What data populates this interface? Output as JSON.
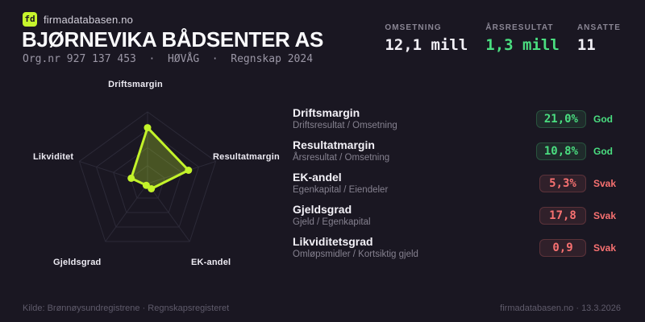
{
  "brand": {
    "logo_text": "fd",
    "site": "firmadatabasen.no"
  },
  "header": {
    "company": "BJØRNEVIKA BÅDSENTER AS",
    "meta": "Org.nr 927 137 453  ·  HØVÅG  ·  Regnskap 2024"
  },
  "stats": [
    {
      "label": "OMSETNING",
      "value": "12,1 mill",
      "tone": "white"
    },
    {
      "label": "ÅRSRESULTAT",
      "value": "1,3 mill",
      "tone": "green"
    },
    {
      "label": "ANSATTE",
      "value": "11",
      "tone": "white"
    }
  ],
  "chart_data": {
    "type": "radar",
    "axes": [
      "Driftsmargin",
      "Resultatmargin",
      "EK-andel",
      "Gjeldsgrad",
      "Likviditet"
    ],
    "values_normalized": [
      0.78,
      0.6,
      0.09,
      0.03,
      0.24
    ],
    "axis_metric_values": [
      "21,0%",
      "10,8%",
      "5,3%",
      "17,8",
      "0,9"
    ],
    "grid_levels": [
      0.25,
      0.5,
      0.75,
      1
    ],
    "accent_color": "#c3f32a",
    "grid_color": "#2c2a38",
    "fill_opacity": 0.28,
    "legend_position": "none",
    "labels": [
      "Driftsmargin",
      "Resultatmargin",
      "EK-andel",
      "Gjeldsgrad",
      "Likviditet"
    ]
  },
  "metrics": [
    {
      "title": "Driftsmargin",
      "formula": "Driftsresultat / Omsetning",
      "value": "21,0%",
      "status": "God",
      "tone": "good"
    },
    {
      "title": "Resultatmargin",
      "formula": "Årsresultat / Omsetning",
      "value": "10,8%",
      "status": "God",
      "tone": "good"
    },
    {
      "title": "EK-andel",
      "formula": "Egenkapital / Eiendeler",
      "value": "5,3%",
      "status": "Svak",
      "tone": "weak"
    },
    {
      "title": "Gjeldsgrad",
      "formula": "Gjeld / Egenkapital",
      "value": "17,8",
      "status": "Svak",
      "tone": "weak"
    },
    {
      "title": "Likviditetsgrad",
      "formula": "Omløpsmidler / Kortsiktig gjeld",
      "value": "0,9",
      "status": "Svak",
      "tone": "weak"
    }
  ],
  "colors": {
    "background": "#1a1722",
    "accent": "#c3f32a",
    "good": "#4ade80",
    "weak": "#f87171"
  },
  "footer": {
    "source": "Kilde: Brønnøysundregistrene · Regnskapsregisteret",
    "credit": "firmadatabasen.no · 13.3.2026"
  }
}
